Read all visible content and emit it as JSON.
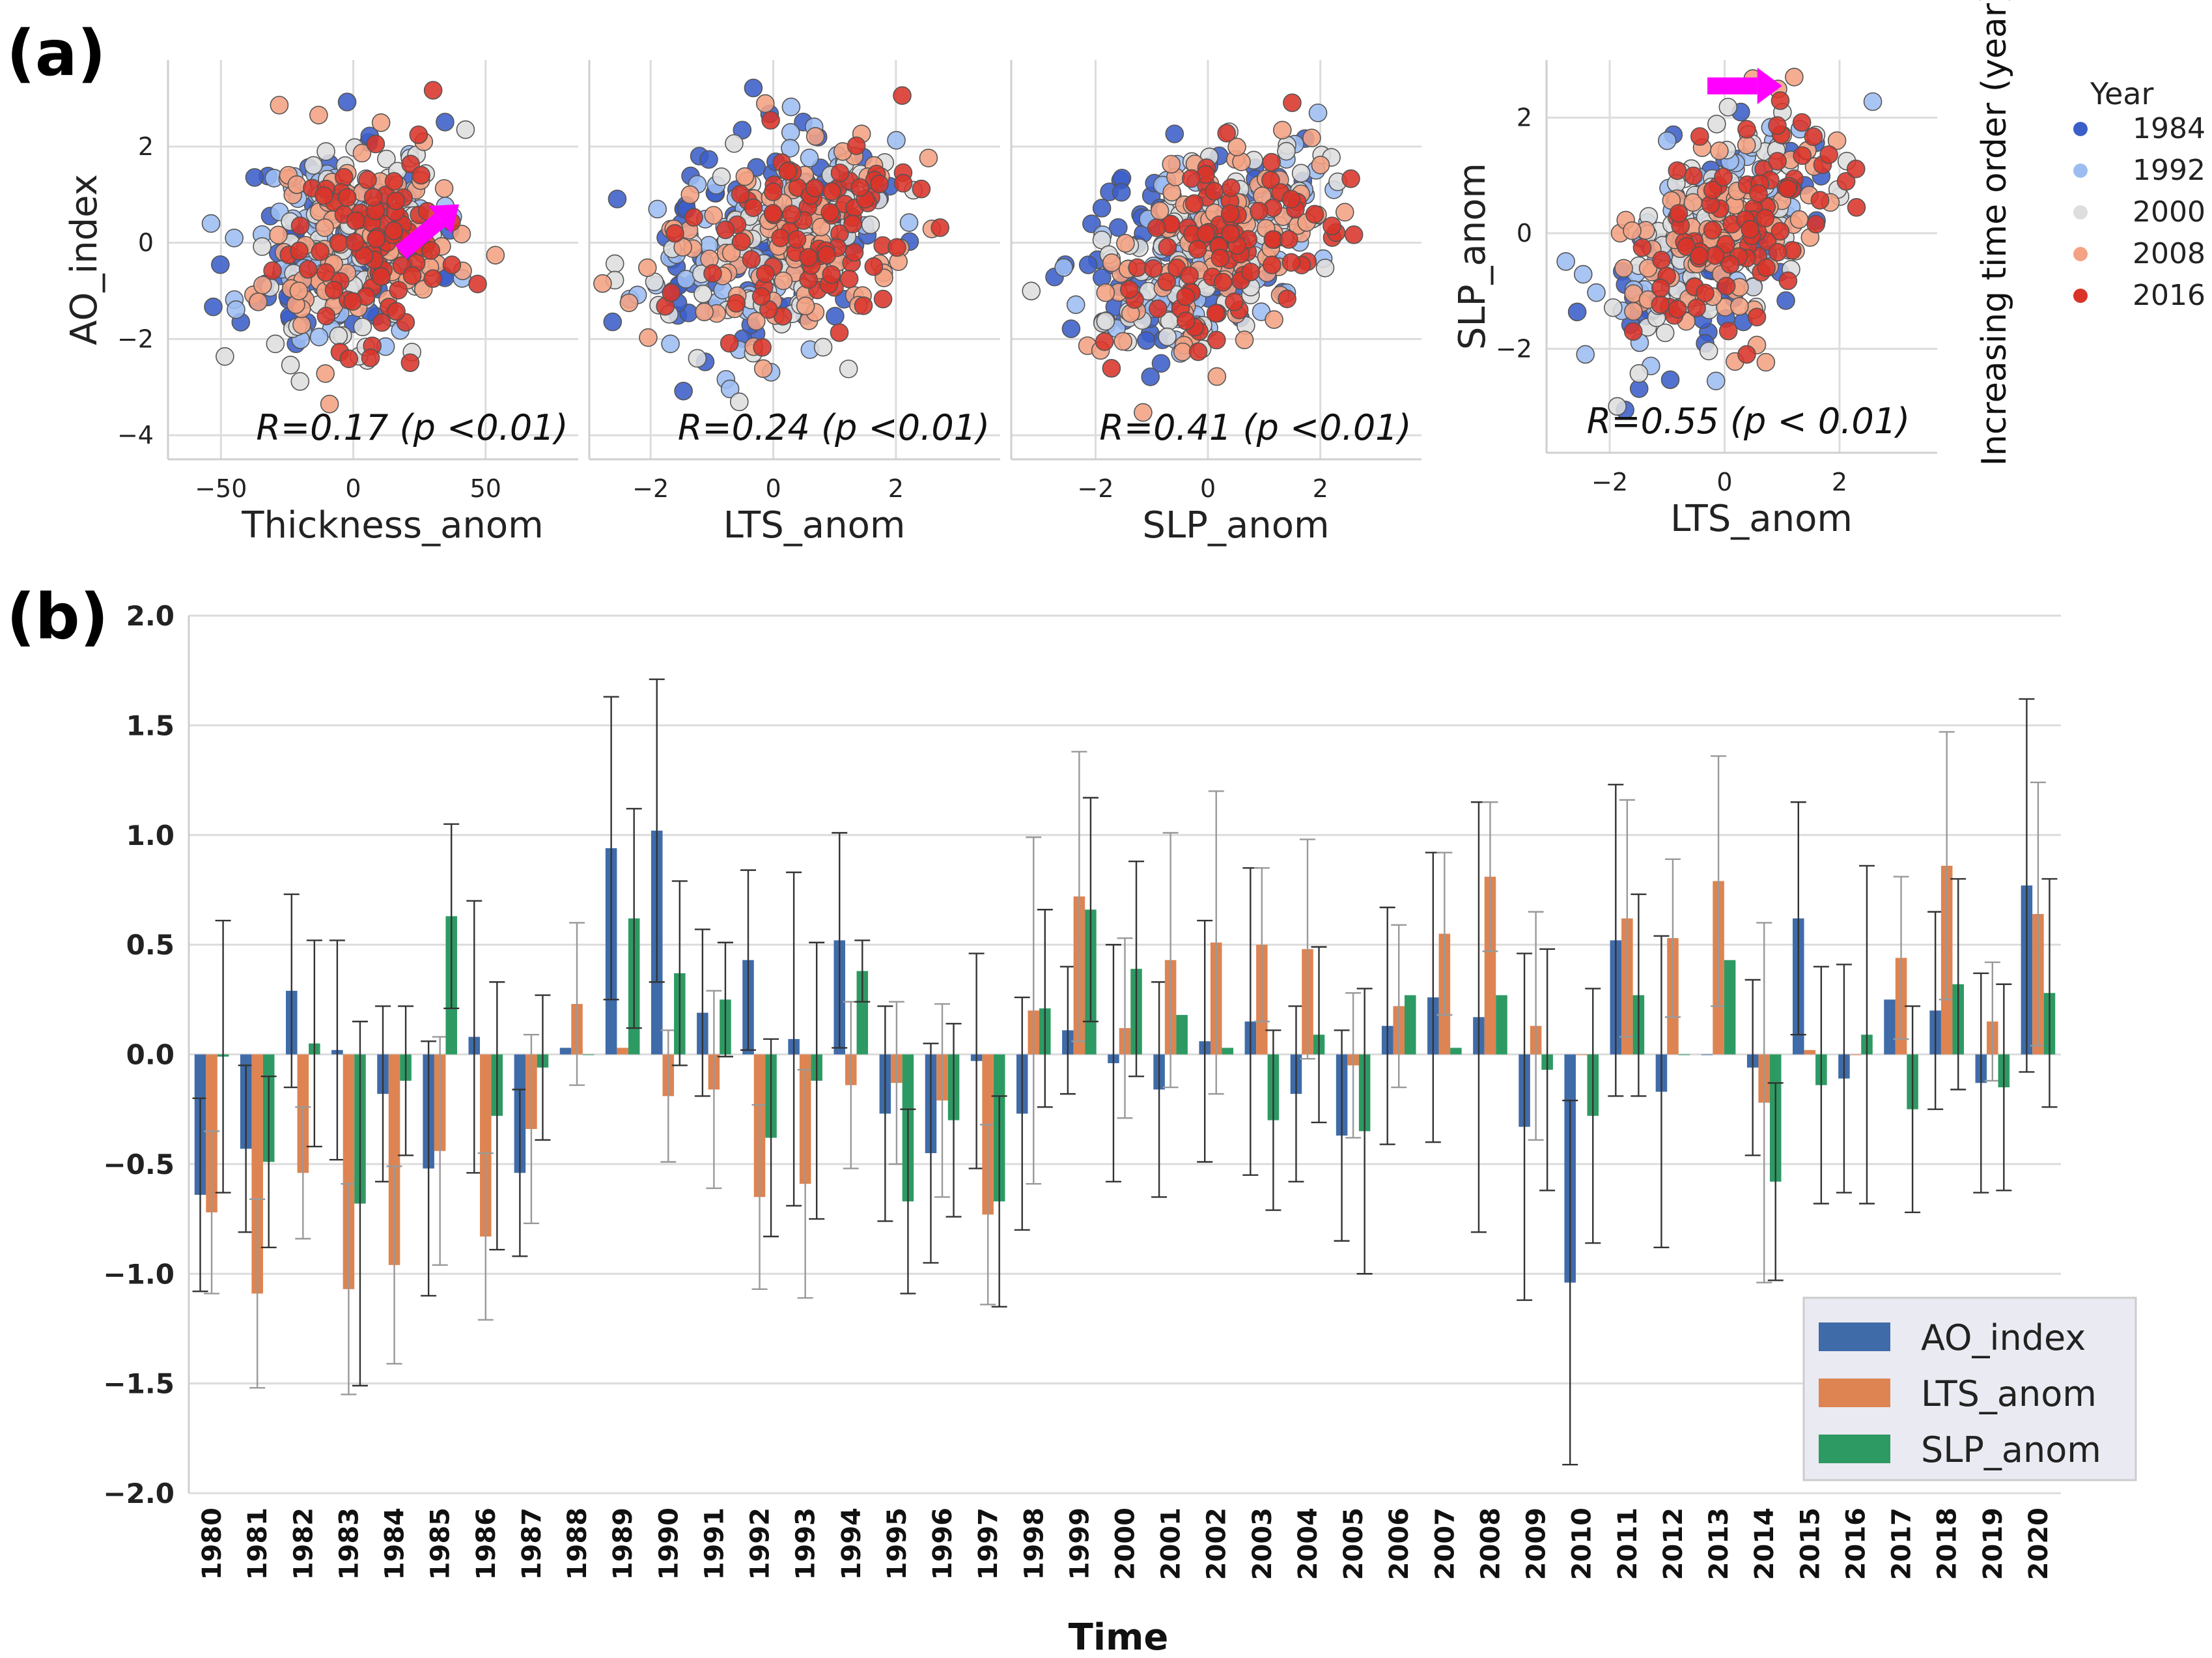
{
  "figure": {
    "panel_a_label": "(a)",
    "panel_b_label": "(b)"
  },
  "colors": {
    "y1984": "#3b5fc9",
    "y1992": "#9dbdf2",
    "y2000": "#dedede",
    "y2008": "#f4a283",
    "y2016": "#d9342a",
    "ao_bar": "#3f6ba8",
    "lts_bar": "#dd8452",
    "slp_bar": "#2e9a63",
    "arrow": "#ff00ff",
    "grid": "#dcdcdc",
    "error_bar": "#333333"
  },
  "scatter": {
    "ylabel_shared": "AO_index",
    "colorbar": {
      "label": "Increasing time order (year)",
      "title": "Year",
      "years": [
        "1984",
        "1992",
        "2000",
        "2008",
        "2016"
      ]
    },
    "panels": [
      {
        "xlabel": "Thickness_anom",
        "ylabel": "AO_index",
        "annotation": "R=0.17 (p <0.01)",
        "xlim": [
          -70,
          85
        ],
        "ylim": [
          -4.5,
          3.8
        ],
        "xticks": [
          -50,
          0,
          50
        ],
        "xtick_labels": [
          "−50",
          "0",
          "50"
        ],
        "yticks": [
          -4,
          -2,
          0,
          2
        ],
        "ytick_labels": [
          "−4",
          "−2",
          "0",
          "2"
        ],
        "scale_x": 18,
        "corr": 0.17,
        "seed": 11,
        "arrow": {
          "from": [
            18,
            -0.2
          ],
          "to": [
            40,
            0.8
          ]
        }
      },
      {
        "xlabel": "LTS_anom",
        "ylabel": "AO_index",
        "annotation": "R=0.24 (p <0.01)",
        "xlim": [
          -3.0,
          3.7
        ],
        "ylim": [
          -4.5,
          3.8
        ],
        "xticks": [
          -2,
          0,
          2
        ],
        "xtick_labels": [
          "−2",
          "0",
          "2"
        ],
        "scale_x": 1.0,
        "corr": 0.24,
        "seed": 23
      },
      {
        "xlabel": "SLP_anom",
        "ylabel": "AO_index",
        "annotation": "R=0.41 (p <0.01)",
        "xlim": [
          -3.5,
          3.8
        ],
        "ylim": [
          -4.5,
          3.8
        ],
        "xticks": [
          -2,
          0,
          2
        ],
        "xtick_labels": [
          "−2",
          "0",
          "2"
        ],
        "scale_x": 1.0,
        "corr": 0.41,
        "seed": 37
      },
      {
        "xlabel": "LTS_anom",
        "ylabel": "SLP_anom",
        "annotation": "R=0.55 (p < 0.01)",
        "xlim": [
          -3.1,
          3.7
        ],
        "ylim": [
          -3.8,
          3.0
        ],
        "xticks": [
          -2,
          0,
          2
        ],
        "xtick_labels": [
          "−2",
          "0",
          "2"
        ],
        "yticks": [
          -2,
          0,
          2
        ],
        "ytick_labels": [
          "−2",
          "0",
          "2"
        ],
        "scale_x": 1.0,
        "corr": 0.55,
        "seed": 53,
        "arrow": {
          "from": [
            -0.3,
            2.55
          ],
          "to": [
            1.0,
            2.55
          ]
        }
      }
    ]
  },
  "chart_data": [
    {
      "type": "scatter",
      "title": "",
      "panels": [
        "AO_index vs Thickness_anom",
        "AO_index vs LTS_anom",
        "AO_index vs SLP_anom",
        "SLP_anom vs LTS_anom"
      ],
      "correlations": [
        0.17,
        0.24,
        0.41,
        0.55
      ],
      "color_by": "Year",
      "legend_entries": [
        "1984",
        "1992",
        "2000",
        "2008",
        "2016"
      ]
    },
    {
      "type": "bar",
      "xlabel": "Time",
      "ylabel": "",
      "ylim": [
        -2.0,
        2.0
      ],
      "yticks": [
        -2.0,
        -1.5,
        -1.0,
        -0.5,
        0.0,
        0.5,
        1.0,
        1.5,
        2.0
      ],
      "ytick_labels": [
        "−2.0",
        "−1.5",
        "−1.0",
        "−0.5",
        "0.0",
        "0.5",
        "1.0",
        "1.5",
        "2.0"
      ],
      "categories": [
        "1980",
        "1981",
        "1982",
        "1983",
        "1984",
        "1985",
        "1986",
        "1987",
        "1988",
        "1989",
        "1990",
        "1991",
        "1992",
        "1993",
        "1994",
        "1995",
        "1996",
        "1997",
        "1998",
        "1999",
        "2000",
        "2001",
        "2002",
        "2003",
        "2004",
        "2005",
        "2006",
        "2007",
        "2008",
        "2009",
        "2010",
        "2011",
        "2012",
        "2013",
        "2014",
        "2015",
        "2016",
        "2017",
        "2018",
        "2019",
        "2020"
      ],
      "series": [
        {
          "name": "AO_index",
          "values": [
            -0.64,
            -0.43,
            0.29,
            0.02,
            -0.18,
            -0.52,
            0.08,
            -0.54,
            0.03,
            0.94,
            1.02,
            0.19,
            0.43,
            0.07,
            0.52,
            -0.27,
            -0.45,
            -0.03,
            -0.27,
            0.11,
            -0.04,
            -0.16,
            0.06,
            0.15,
            -0.18,
            -0.37,
            0.13,
            0.26,
            0.17,
            -0.33,
            -1.04,
            0.52,
            -0.17,
            0.0,
            -0.06,
            0.62,
            -0.11,
            0.25,
            0.2,
            -0.13,
            0.77
          ],
          "error": [
            0.44,
            0.38,
            0.44,
            0.5,
            0.4,
            0.58,
            0.62,
            0.38,
            0.0,
            0.69,
            0.69,
            0.38,
            0.41,
            0.76,
            0.49,
            0.49,
            0.5,
            0.49,
            0.53,
            0.29,
            0.54,
            0.49,
            0.55,
            0.7,
            0.4,
            0.48,
            0.54,
            0.66,
            0.98,
            0.79,
            0.83,
            0.71,
            0.71,
            0.0,
            0.4,
            0.53,
            0.52,
            0.0,
            0.45,
            0.5,
            0.85
          ]
        },
        {
          "name": "LTS_anom",
          "values": [
            -0.72,
            -1.09,
            -0.54,
            -1.07,
            -0.96,
            -0.44,
            -0.83,
            -0.34,
            0.23,
            0.03,
            -0.19,
            -0.16,
            -0.65,
            -0.59,
            -0.14,
            -0.13,
            -0.21,
            -0.73,
            0.2,
            0.72,
            0.12,
            0.43,
            0.51,
            0.5,
            0.48,
            -0.05,
            0.22,
            0.55,
            0.81,
            0.13,
            0.0,
            0.62,
            0.53,
            0.79,
            -0.22,
            0.02,
            0.0,
            0.44,
            0.86,
            0.15,
            0.64
          ],
          "error": [
            0.37,
            0.43,
            0.3,
            0.48,
            0.45,
            0.52,
            0.38,
            0.43,
            0.37,
            0.0,
            0.3,
            0.45,
            0.42,
            0.52,
            0.38,
            0.37,
            0.44,
            0.41,
            0.79,
            0.66,
            0.41,
            0.58,
            0.69,
            0.35,
            0.5,
            0.33,
            0.37,
            0.37,
            0.34,
            0.52,
            0.0,
            0.54,
            0.36,
            0.57,
            0.82,
            0.0,
            0.0,
            0.37,
            0.61,
            0.27,
            0.6
          ]
        },
        {
          "name": "SLP_anom",
          "values": [
            -0.01,
            -0.49,
            0.05,
            -0.68,
            -0.12,
            0.63,
            -0.28,
            -0.06,
            0.0,
            0.62,
            0.37,
            0.25,
            -0.38,
            -0.12,
            0.38,
            -0.67,
            -0.3,
            -0.67,
            0.21,
            0.66,
            0.39,
            0.18,
            0.03,
            -0.3,
            0.09,
            -0.35,
            0.27,
            0.03,
            0.27,
            -0.07,
            -0.28,
            0.27,
            0.0,
            0.43,
            -0.58,
            -0.14,
            0.09,
            -0.25,
            0.32,
            -0.15,
            0.28
          ],
          "error": [
            0.62,
            0.39,
            0.47,
            0.83,
            0.34,
            0.42,
            0.61,
            0.33,
            0.0,
            0.5,
            0.42,
            0.26,
            0.45,
            0.63,
            0.14,
            0.42,
            0.44,
            0.48,
            0.45,
            0.51,
            0.49,
            0.0,
            0.0,
            0.41,
            0.4,
            0.65,
            0.0,
            0.0,
            0.0,
            0.55,
            0.58,
            0.46,
            0.0,
            0.0,
            0.45,
            0.54,
            0.77,
            0.47,
            0.48,
            0.47,
            0.52
          ]
        }
      ],
      "legend": [
        "AO_index",
        "LTS_anom",
        "SLP_anom"
      ],
      "legend_position": "lower-right"
    }
  ]
}
